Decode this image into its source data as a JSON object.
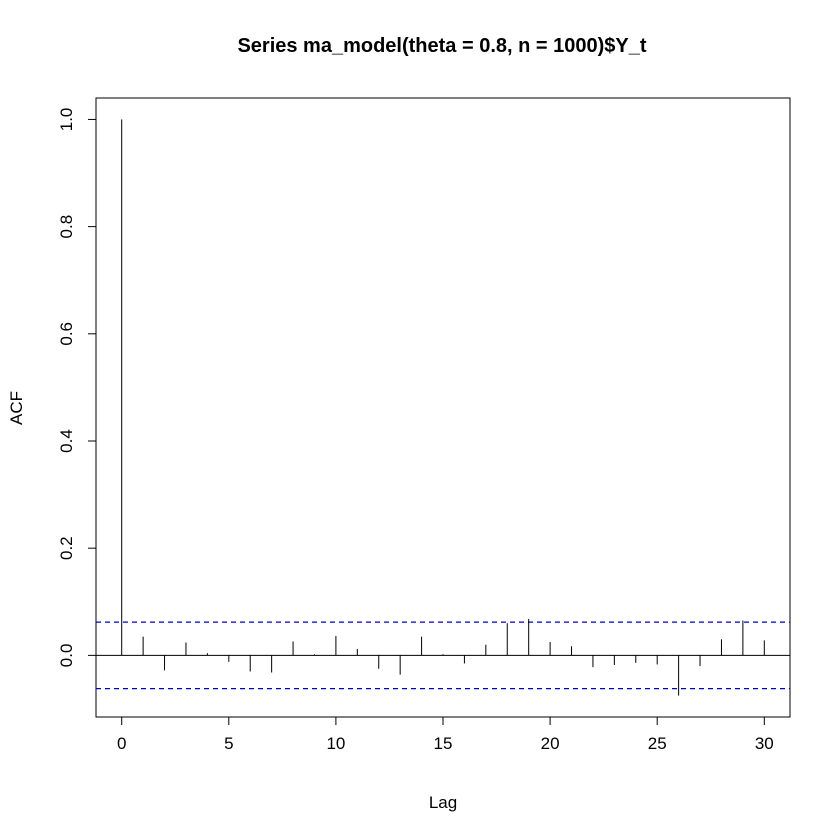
{
  "chart_data": {
    "type": "bar",
    "title": "Series  ma_model(theta = 0.8, n = 1000)$Y_t",
    "xlabel": "Lag",
    "ylabel": "ACF",
    "xlim": [
      -1.2,
      31.2
    ],
    "ylim": [
      -0.115,
      1.04
    ],
    "x_ticks": [
      0,
      5,
      10,
      15,
      20,
      25,
      30
    ],
    "x_tick_labels": [
      "0",
      "5",
      "10",
      "15",
      "20",
      "25",
      "30"
    ],
    "y_ticks": [
      0.0,
      0.2,
      0.4,
      0.6,
      0.8,
      1.0
    ],
    "y_tick_labels": [
      "0.0",
      "0.2",
      "0.4",
      "0.6",
      "0.8",
      "1.0"
    ],
    "lags": [
      0,
      1,
      2,
      3,
      4,
      5,
      6,
      7,
      8,
      9,
      10,
      11,
      12,
      13,
      14,
      15,
      16,
      17,
      18,
      19,
      20,
      21,
      22,
      23,
      24,
      25,
      26,
      27,
      28,
      29,
      30
    ],
    "acf": [
      1.0,
      0.035,
      -0.028,
      0.024,
      0.004,
      -0.012,
      -0.03,
      -0.032,
      0.026,
      0.002,
      0.036,
      0.012,
      -0.025,
      -0.036,
      0.035,
      0.002,
      -0.015,
      0.02,
      0.06,
      0.068,
      0.025,
      0.017,
      -0.022,
      -0.018,
      -0.014,
      -0.017,
      -0.075,
      -0.02,
      0.03,
      0.065,
      0.028
    ],
    "confidence_bound": 0.062,
    "colors": {
      "bars": "#000000",
      "bounds": "#0000cc",
      "zero_line": "#000000"
    },
    "grid": false,
    "legend": "none"
  }
}
